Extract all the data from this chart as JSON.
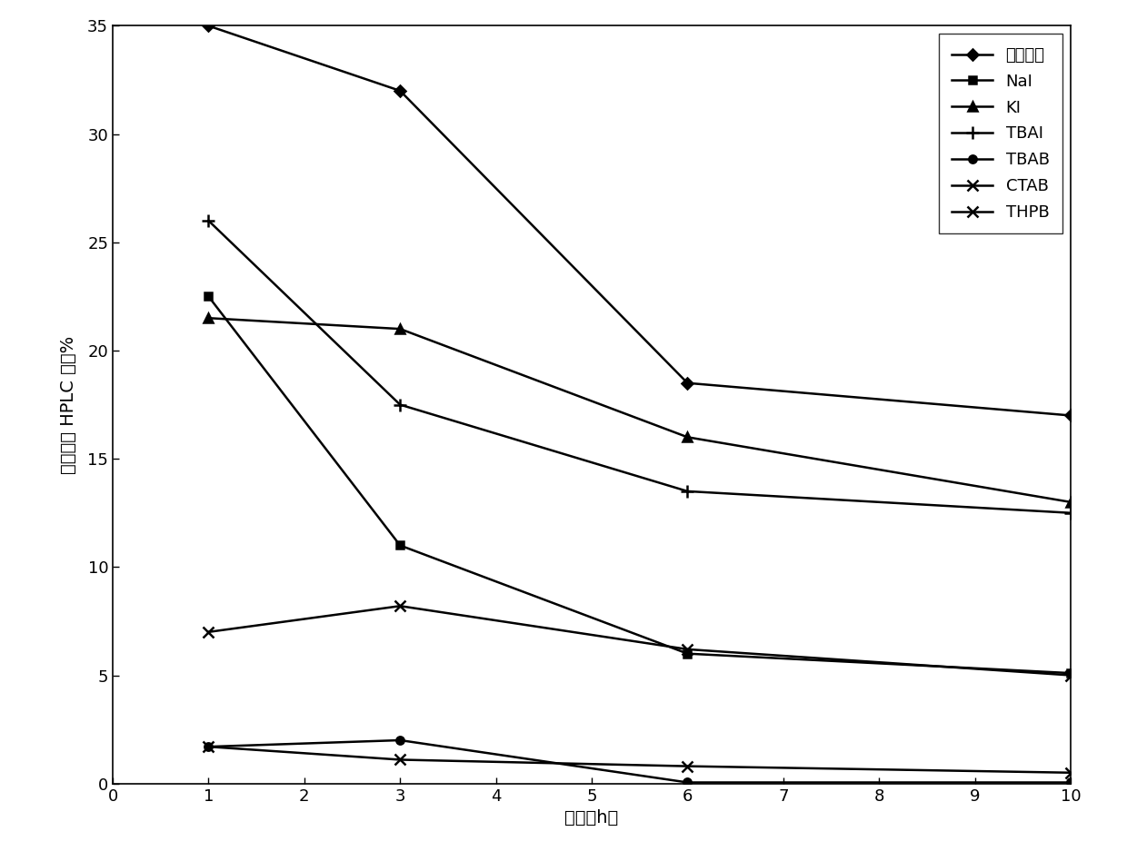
{
  "series": [
    {
      "label": "无傅化剂",
      "x": [
        1,
        3,
        6,
        10
      ],
      "y": [
        35,
        32,
        18.5,
        17
      ],
      "marker": "D",
      "linestyle": "-",
      "linewidth": 1.8,
      "markersize": 6
    },
    {
      "label": "NaI",
      "x": [
        1,
        3,
        6,
        10
      ],
      "y": [
        22.5,
        11,
        6.0,
        5.1
      ],
      "marker": "s",
      "linestyle": "-",
      "linewidth": 1.8,
      "markersize": 6
    },
    {
      "label": "KI",
      "x": [
        1,
        3,
        6,
        10
      ],
      "y": [
        21.5,
        21,
        16,
        13
      ],
      "marker": "^",
      "linestyle": "-",
      "linewidth": 1.8,
      "markersize": 7
    },
    {
      "label": "TBAI",
      "x": [
        1,
        3,
        6,
        10
      ],
      "y": [
        26,
        17.5,
        13.5,
        12.5
      ],
      "marker": "+",
      "linestyle": "-",
      "linewidth": 1.8,
      "markersize": 10
    },
    {
      "label": "TBAB",
      "x": [
        1,
        3,
        6,
        10
      ],
      "y": [
        1.7,
        2.0,
        0.05,
        0.05
      ],
      "marker": "o",
      "linestyle": "-",
      "linewidth": 1.8,
      "markersize": 6
    },
    {
      "label": "CTAB",
      "x": [
        1,
        3,
        6,
        10
      ],
      "y": [
        7.0,
        8.2,
        6.2,
        5.0
      ],
      "marker": "x",
      "linestyle": "-",
      "linewidth": 1.8,
      "markersize": 8
    },
    {
      "label": "THPB",
      "x": [
        1,
        3,
        6,
        10
      ],
      "y": [
        1.7,
        1.1,
        0.8,
        0.5
      ],
      "marker": "x",
      "linestyle": "-",
      "linewidth": 1.8,
      "markersize": 8
    }
  ],
  "xlabel": "时间（h）",
  "ylabel": "较考酮的 HPLC 面积%",
  "xlim": [
    0,
    10
  ],
  "ylim": [
    0,
    35
  ],
  "xticks": [
    0,
    1,
    2,
    3,
    4,
    5,
    6,
    7,
    8,
    9,
    10
  ],
  "yticks": [
    0,
    5,
    10,
    15,
    20,
    25,
    30,
    35
  ],
  "background_color": "#ffffff",
  "line_color": "#000000",
  "font_size_label": 14,
  "font_size_tick": 13,
  "font_size_legend": 13
}
